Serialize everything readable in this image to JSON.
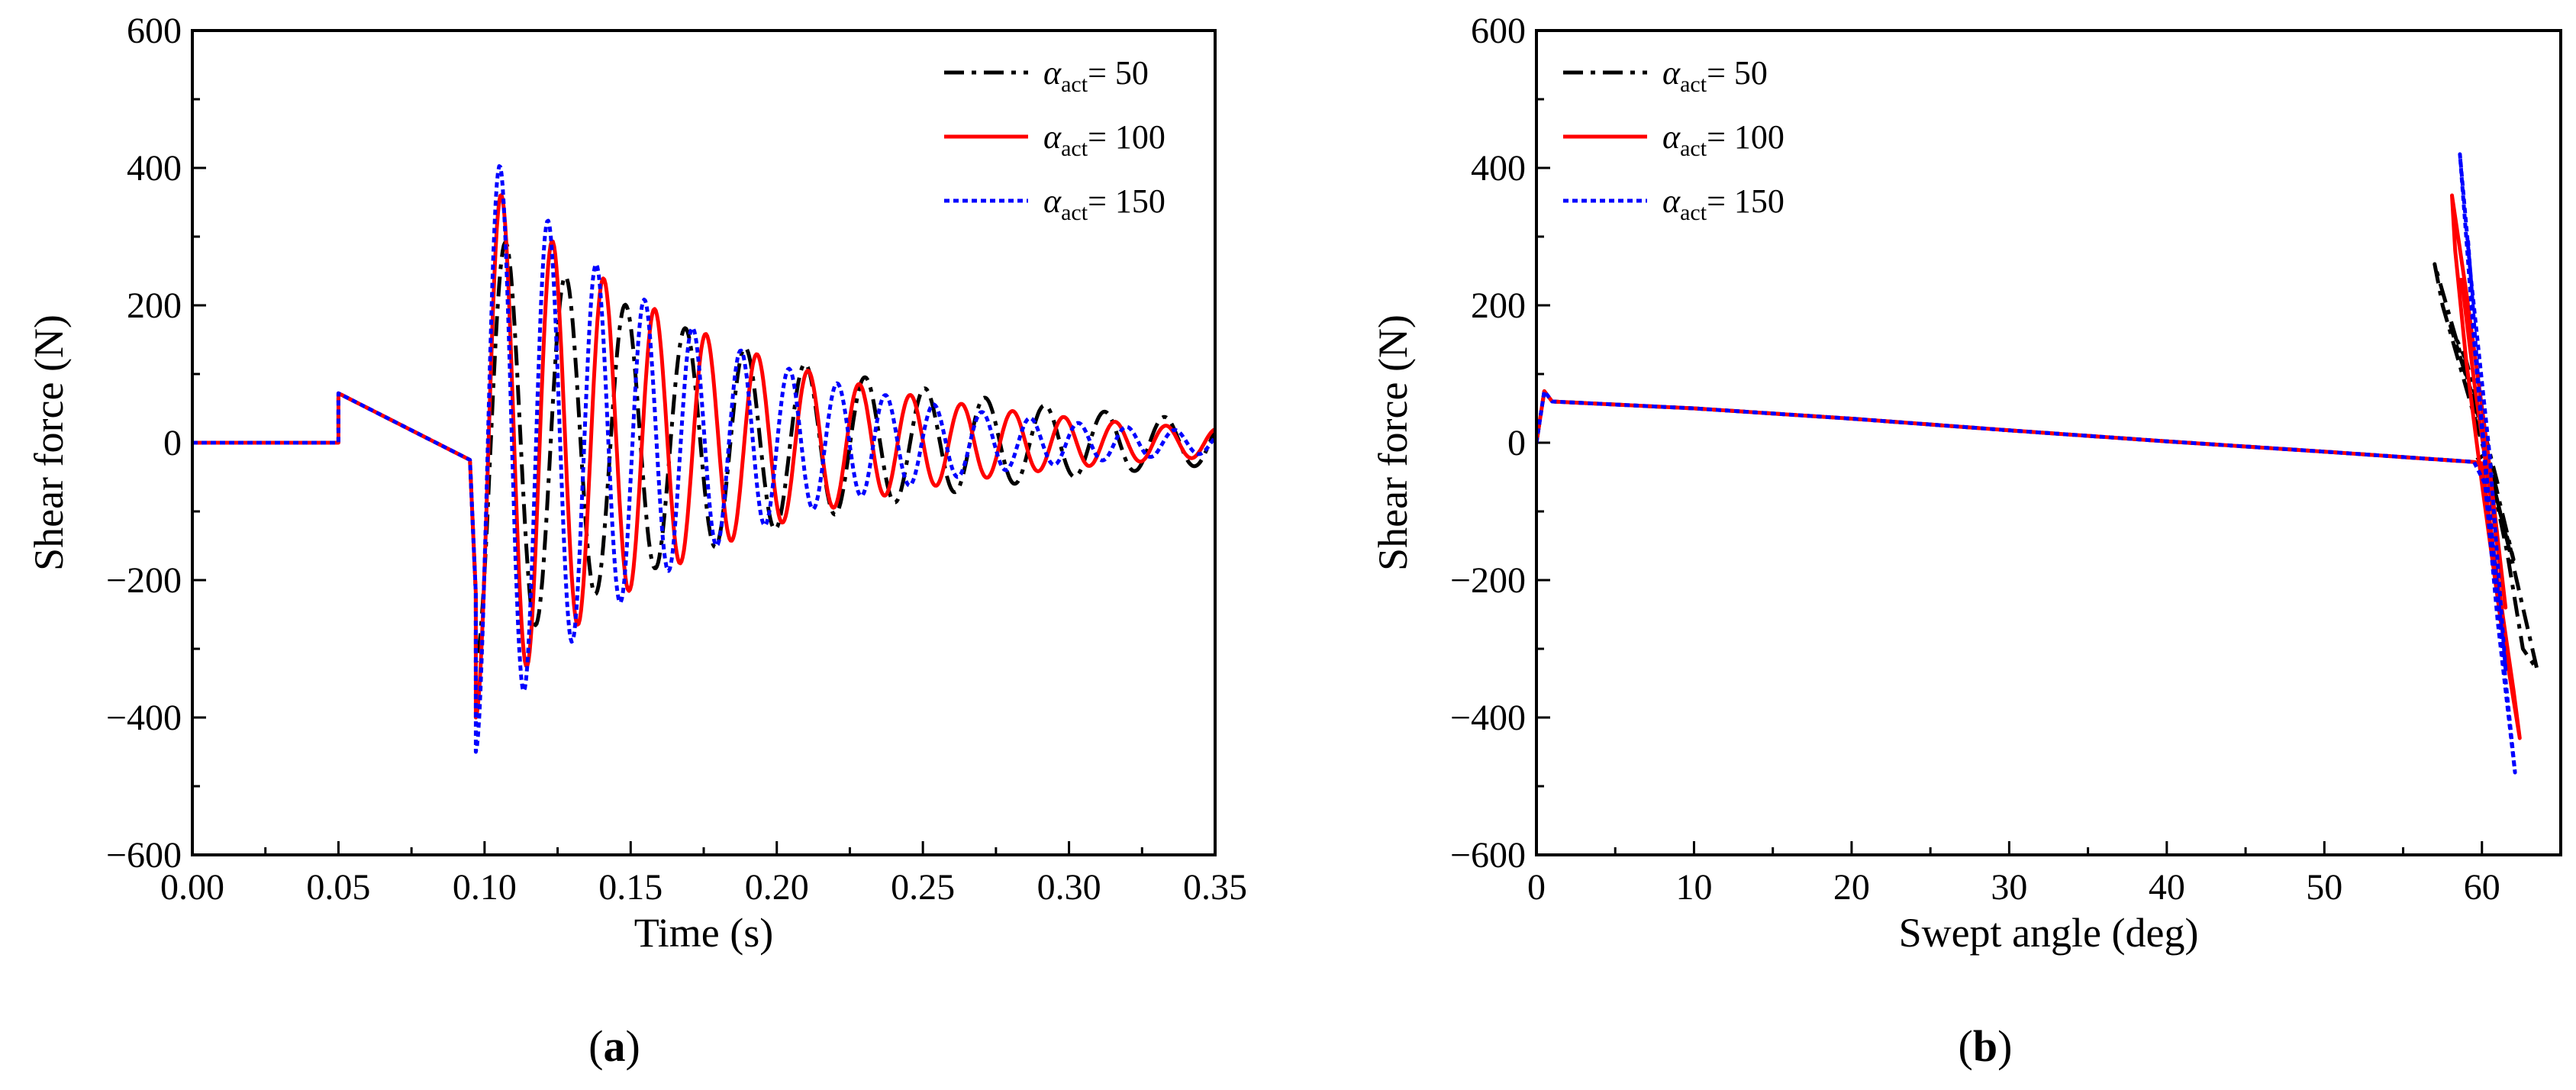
{
  "chart_data": [
    {
      "type": "line",
      "panel": "a",
      "panel_label": "(a)",
      "panel_letter": "a",
      "xlabel": "Time (s)",
      "ylabel": "Shear force (N)",
      "xlim": [
        0.0,
        0.35
      ],
      "ylim": [
        -600,
        600
      ],
      "xticks": [
        "0.00",
        "0.05",
        "0.10",
        "0.15",
        "0.20",
        "0.25",
        "0.30",
        "0.35"
      ],
      "yticks": [
        "600",
        "400",
        "200",
        "0",
        "−200",
        "−400",
        "−600"
      ],
      "legend_position": "top-right",
      "series": [
        {
          "name": "α_act = 50",
          "label_prefix": "α",
          "label_sub": "act",
          "label_value": "= 50",
          "color": "#000000",
          "dash": "dash-dot",
          "base": {
            "t": [
              0.0,
              0.05,
              0.05,
              0.095,
              0.097
            ],
            "f": [
              0,
              0,
              72,
              -25,
              -220
            ]
          },
          "osc": {
            "t0": 0.097,
            "period": 0.0205,
            "A0": 320,
            "decay": 0.11,
            "phase": -1.5708,
            "end": 0.35
          }
        },
        {
          "name": "α_act = 100",
          "label_prefix": "α",
          "label_sub": "act",
          "label_value": "= 100",
          "color": "#ff0000",
          "dash": "solid",
          "base": {
            "t": [
              0.0,
              0.05,
              0.05,
              0.095,
              0.097
            ],
            "f": [
              0,
              0,
              72,
              -25,
              -220
            ]
          },
          "osc": {
            "t0": 0.097,
            "period": 0.0175,
            "A0": 400,
            "decay": 0.085,
            "phase": -1.5708,
            "end": 0.35
          }
        },
        {
          "name": "α_act = 150",
          "label_prefix": "α",
          "label_sub": "act",
          "label_value": "= 150",
          "color": "#0000ff",
          "dash": "dotted",
          "base": {
            "t": [
              0.0,
              0.05,
              0.05,
              0.095,
              0.097
            ],
            "f": [
              0,
              0,
              72,
              -25,
              -220
            ]
          },
          "osc": {
            "t0": 0.097,
            "period": 0.0165,
            "A0": 450,
            "decay": 0.075,
            "phase": -1.5708,
            "end": 0.35
          }
        }
      ]
    },
    {
      "type": "line",
      "panel": "b",
      "panel_label": "(b)",
      "panel_letter": "b",
      "xlabel": "Swept angle (deg)",
      "ylabel": "Shear force (N)",
      "xlim": [
        0,
        65
      ],
      "ylim": [
        -600,
        600
      ],
      "xticks": [
        "0",
        "10",
        "20",
        "30",
        "40",
        "50",
        "60"
      ],
      "yticks": [
        "600",
        "400",
        "200",
        "0",
        "−200",
        "−400",
        "−600"
      ],
      "legend_position": "top-left",
      "series": [
        {
          "name": "α_act = 50",
          "label_prefix": "α",
          "label_sub": "act",
          "label_value": "= 50",
          "color": "#000000",
          "dash": "dash-dot",
          "points": [
            [
              0,
              0
            ],
            [
              0.5,
              75
            ],
            [
              1,
              60
            ],
            [
              10,
              50
            ],
            [
              20,
              35
            ],
            [
              30,
              18
            ],
            [
              40,
              2
            ],
            [
              50,
              -13
            ],
            [
              59.5,
              -28
            ],
            [
              60.3,
              -15
            ],
            [
              61.6,
              -160
            ],
            [
              62.6,
              -300
            ],
            [
              63.5,
              -330
            ],
            [
              62,
              -180
            ],
            [
              60.5,
              -40
            ],
            [
              59,
              80
            ],
            [
              57.5,
              200
            ],
            [
              57,
              260
            ],
            [
              58,
              180
            ],
            [
              60,
              20
            ],
            [
              62,
              -170
            ],
            [
              61,
              -90
            ],
            [
              59.5,
              60
            ],
            [
              58,
              170
            ],
            [
              59,
              120
            ],
            [
              61,
              -60
            ]
          ]
        },
        {
          "name": "α_act = 100",
          "label_prefix": "α",
          "label_sub": "act",
          "label_value": "= 100",
          "color": "#ff0000",
          "dash": "solid",
          "points": [
            [
              0,
              0
            ],
            [
              0.5,
              75
            ],
            [
              1,
              60
            ],
            [
              10,
              50
            ],
            [
              20,
              35
            ],
            [
              30,
              18
            ],
            [
              40,
              2
            ],
            [
              50,
              -13
            ],
            [
              59.5,
              -28
            ],
            [
              60,
              -30
            ],
            [
              61,
              -200
            ],
            [
              62,
              -360
            ],
            [
              62.4,
              -430
            ],
            [
              61.2,
              -260
            ],
            [
              60,
              -60
            ],
            [
              59,
              120
            ],
            [
              58.3,
              280
            ],
            [
              58.1,
              360
            ],
            [
              59,
              220
            ],
            [
              60.3,
              0
            ],
            [
              61.5,
              -240
            ],
            [
              60.8,
              -120
            ],
            [
              59.5,
              90
            ],
            [
              58.7,
              240
            ]
          ]
        },
        {
          "name": "α_act = 150",
          "label_prefix": "α",
          "label_sub": "act",
          "label_value": "= 150",
          "color": "#0000ff",
          "dash": "dotted",
          "points": [
            [
              0,
              0
            ],
            [
              0.5,
              75
            ],
            [
              1,
              60
            ],
            [
              10,
              50
            ],
            [
              20,
              35
            ],
            [
              30,
              18
            ],
            [
              40,
              2
            ],
            [
              50,
              -13
            ],
            [
              59.5,
              -28
            ],
            [
              60.2,
              -60
            ],
            [
              61,
              -260
            ],
            [
              61.8,
              -420
            ],
            [
              62.1,
              -480
            ],
            [
              61.3,
              -300
            ],
            [
              60.3,
              -60
            ],
            [
              59.5,
              150
            ],
            [
              58.8,
              360
            ],
            [
              58.6,
              420
            ],
            [
              59.3,
              240
            ],
            [
              60.5,
              -20
            ],
            [
              61.5,
              -330
            ],
            [
              60.7,
              -150
            ],
            [
              59.8,
              80
            ],
            [
              59.1,
              300
            ]
          ]
        }
      ]
    }
  ]
}
